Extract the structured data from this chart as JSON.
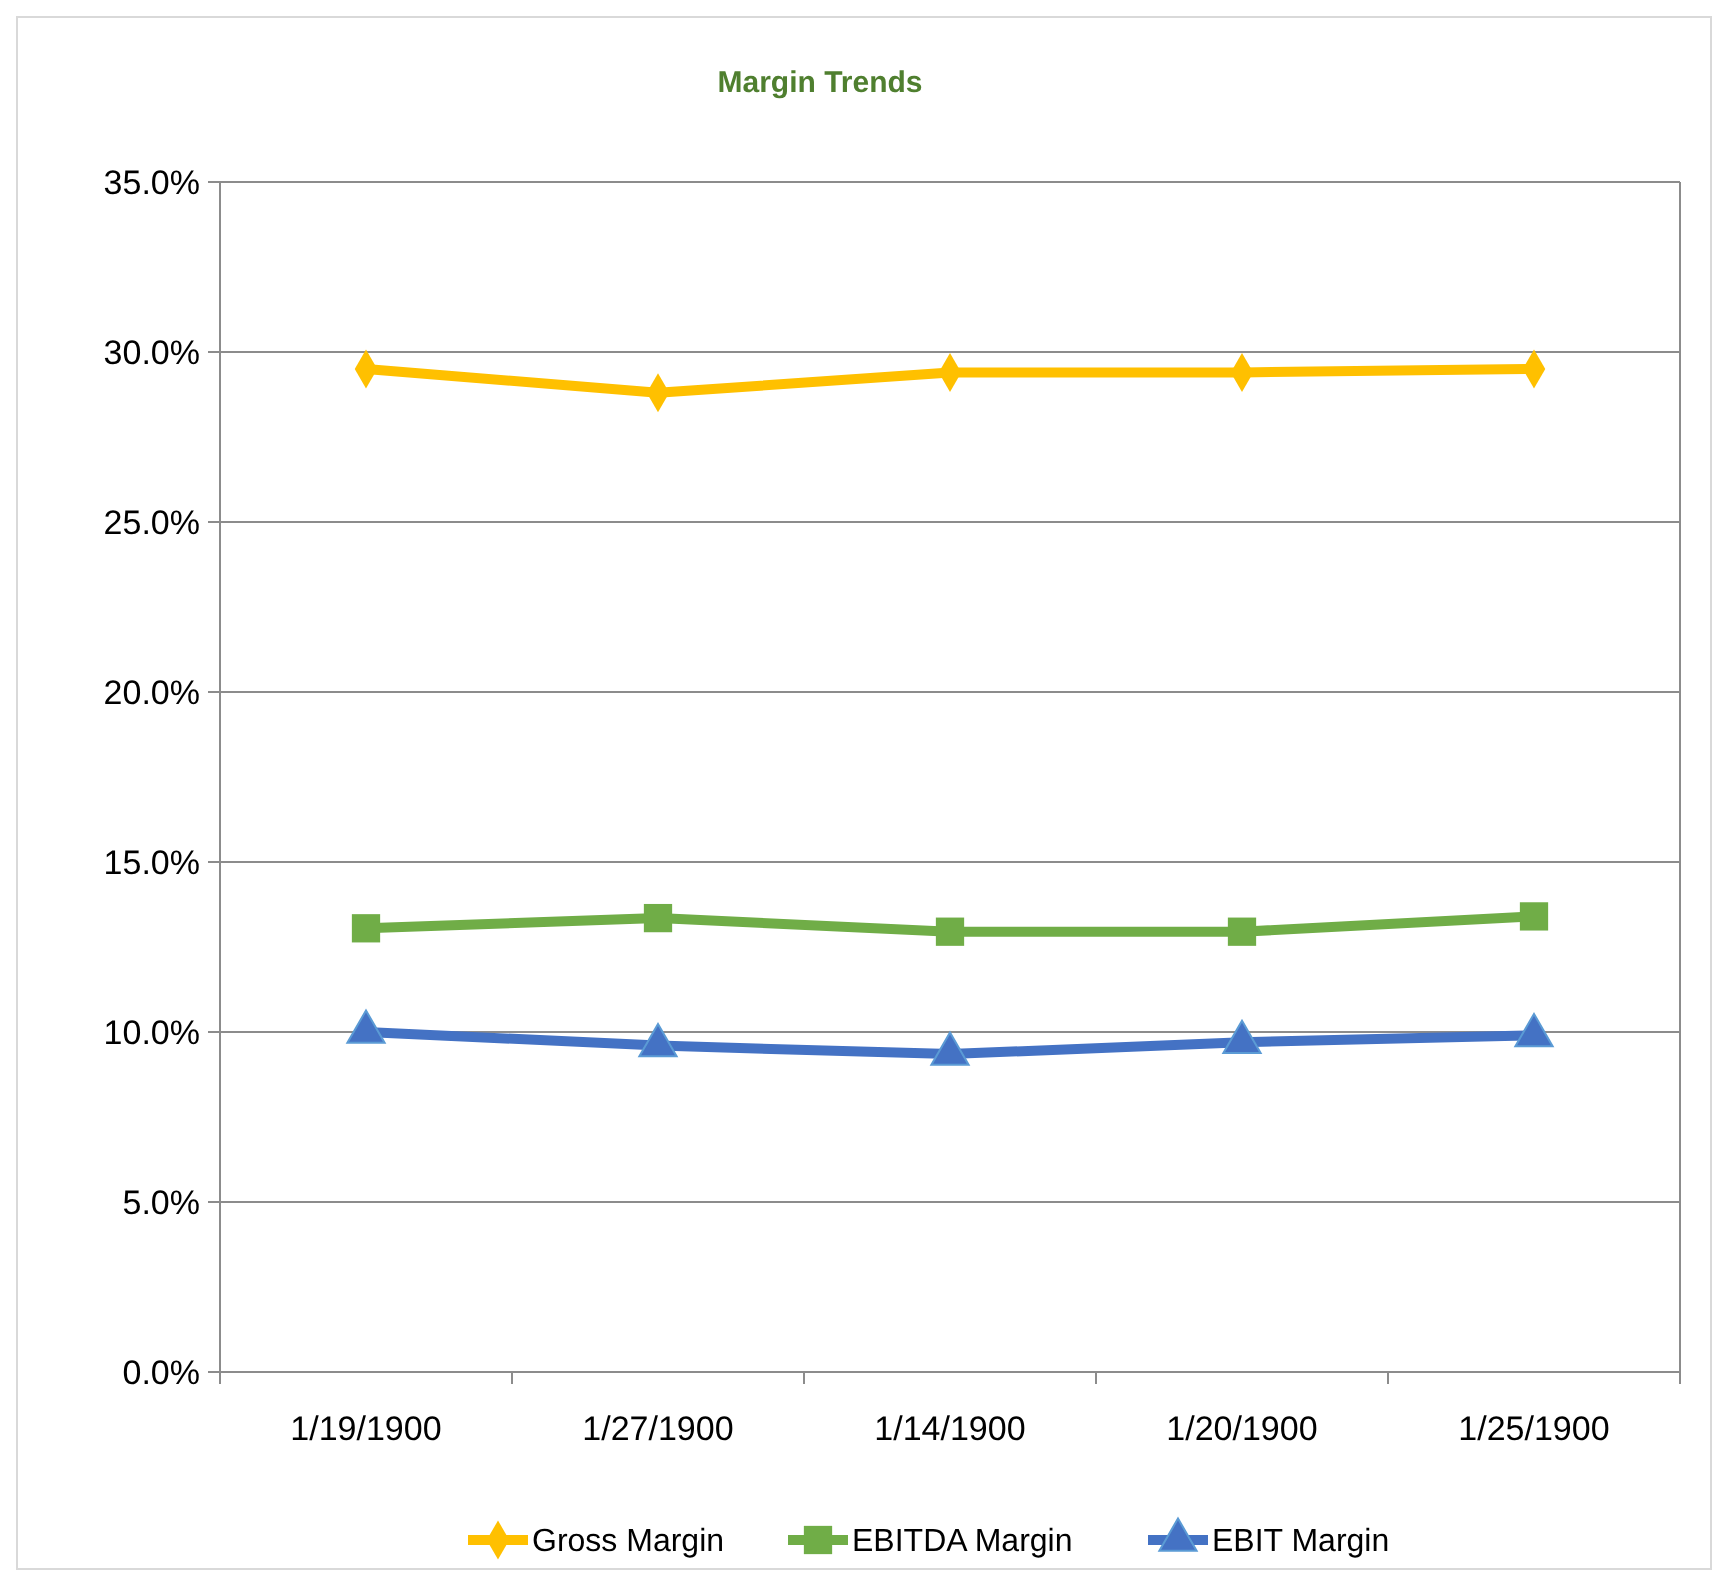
{
  "chart_data": {
    "type": "line",
    "title": "Margin Trends",
    "categories": [
      "1/19/1900",
      "1/27/1900",
      "1/14/1900",
      "1/20/1900",
      "1/25/1900"
    ],
    "series": [
      {
        "name": "Gross Margin",
        "color": "#ffc000",
        "marker": "diamond",
        "values": [
          29.5,
          28.8,
          29.4,
          29.4,
          29.5
        ]
      },
      {
        "name": "EBITDA Margin",
        "color": "#70ad47",
        "marker": "square",
        "values": [
          13.05,
          13.35,
          12.95,
          12.95,
          13.4
        ]
      },
      {
        "name": "EBIT Margin",
        "color": "#4472c4",
        "marker": "triangle",
        "values": [
          10.0,
          9.6,
          9.35,
          9.7,
          9.9
        ]
      }
    ],
    "ylim": [
      0,
      35
    ],
    "yticks": [
      {
        "value": 0,
        "label": "0.0%"
      },
      {
        "value": 5,
        "label": "5.0%"
      },
      {
        "value": 10,
        "label": "10.0%"
      },
      {
        "value": 15,
        "label": "15.0%"
      },
      {
        "value": 20,
        "label": "20.0%"
      },
      {
        "value": 25,
        "label": "25.0%"
      },
      {
        "value": 30,
        "label": "30.0%"
      },
      {
        "value": 35,
        "label": "35.0%"
      }
    ],
    "grid": "y",
    "legend": "bottom"
  }
}
